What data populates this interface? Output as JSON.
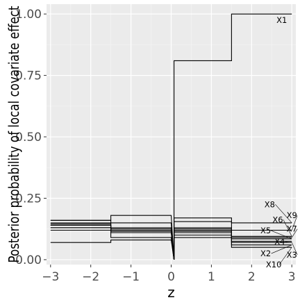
{
  "chart_data": {
    "type": "line",
    "xlabel": "z",
    "ylabel": "Posterior probability of local covariate effect",
    "xlim": [
      -3.1,
      3.1
    ],
    "ylim": [
      -0.02,
      1.04
    ],
    "x_ticks": [
      -3,
      -2,
      -1,
      0,
      1,
      2,
      3
    ],
    "x_tick_labels": [
      "−3",
      "−2",
      "−1",
      "0",
      "1",
      "2",
      "3"
    ],
    "y_ticks": [
      0.0,
      0.25,
      0.5,
      0.75,
      1.0
    ],
    "y_tick_labels": [
      "0.00",
      "0.25",
      "0.50",
      "0.75",
      "1.00"
    ],
    "grid": true,
    "panel_background": "#ebebeb",
    "line_color": "#000000",
    "series": [
      {
        "name": "X1",
        "x": [
          -3,
          -1.5,
          -1.5,
          0,
          0.07,
          0.07,
          1.5,
          1.5,
          3
        ],
        "y": [
          0.14,
          0.14,
          0.12,
          0.12,
          0,
          0.81,
          0.81,
          1.0,
          1.0
        ]
      },
      {
        "name": "X2",
        "x": [
          -3,
          -1.5,
          -1.5,
          0,
          0.07,
          0.07,
          1.5,
          1.5,
          3
        ],
        "y": [
          0.12,
          0.12,
          0.09,
          0.09,
          0,
          0.09,
          0.09,
          0.06,
          0.06
        ]
      },
      {
        "name": "X3",
        "x": [
          -3,
          -1.5,
          -1.5,
          0,
          0.07,
          0.07,
          1.5,
          1.5,
          3
        ],
        "y": [
          0.13,
          0.13,
          0.11,
          0.11,
          0,
          0.11,
          0.11,
          0.07,
          0.07
        ]
      },
      {
        "name": "X4",
        "x": [
          -3,
          -1.5,
          -1.5,
          0,
          0.07,
          0.07,
          1.5,
          1.5,
          3
        ],
        "y": [
          0.13,
          0.13,
          0.115,
          0.115,
          0,
          0.115,
          0.115,
          0.075,
          0.075
        ]
      },
      {
        "name": "X5",
        "x": [
          -3,
          -1.5,
          -1.5,
          0,
          0.07,
          0.07,
          1.5,
          1.5,
          3
        ],
        "y": [
          0.14,
          0.14,
          0.12,
          0.12,
          0,
          0.12,
          0.12,
          0.085,
          0.085
        ]
      },
      {
        "name": "X6",
        "x": [
          -3,
          -1.5,
          -1.5,
          0,
          0.07,
          0.07,
          1.5,
          1.5,
          3
        ],
        "y": [
          0.145,
          0.145,
          0.125,
          0.125,
          0,
          0.125,
          0.125,
          0.095,
          0.095
        ]
      },
      {
        "name": "X7",
        "x": [
          -3,
          -1.5,
          -1.5,
          0,
          0.07,
          0.07,
          1.5,
          1.5,
          3
        ],
        "y": [
          0.15,
          0.15,
          0.13,
          0.13,
          0,
          0.13,
          0.13,
          0.09,
          0.09
        ]
      },
      {
        "name": "X8",
        "x": [
          -3,
          -1.5,
          -1.5,
          0,
          0.07,
          0.07,
          1.5,
          1.5,
          3
        ],
        "y": [
          0.16,
          0.16,
          0.18,
          0.18,
          0,
          0.17,
          0.17,
          0.15,
          0.15
        ]
      },
      {
        "name": "X9",
        "x": [
          -3,
          -1.5,
          -1.5,
          0,
          0.07,
          0.07,
          1.5,
          1.5,
          3
        ],
        "y": [
          0.16,
          0.16,
          0.15,
          0.15,
          0,
          0.155,
          0.155,
          0.12,
          0.12
        ]
      },
      {
        "name": "X10",
        "x": [
          -3,
          -1.5,
          -1.5,
          0,
          0.07,
          0.07,
          1.5,
          1.5,
          3
        ],
        "y": [
          0.07,
          0.07,
          0.08,
          0.08,
          0,
          0.1,
          0.1,
          0.05,
          0.05
        ]
      }
    ],
    "labels": [
      {
        "text": "X1",
        "x": 2.75,
        "y": 0.975
      },
      {
        "text": "X8",
        "x": 2.45,
        "y": 0.225
      },
      {
        "text": "X9",
        "x": 3.0,
        "y": 0.18
      },
      {
        "text": "X6",
        "x": 2.65,
        "y": 0.163
      },
      {
        "text": "X5",
        "x": 2.35,
        "y": 0.118
      },
      {
        "text": "X7",
        "x": 3.0,
        "y": 0.125
      },
      {
        "text": "X4",
        "x": 2.7,
        "y": 0.073
      },
      {
        "text": "X2",
        "x": 2.35,
        "y": 0.025
      },
      {
        "text": "X3",
        "x": 3.0,
        "y": 0.02
      },
      {
        "text": "X10",
        "x": 2.55,
        "y": -0.02
      }
    ]
  }
}
